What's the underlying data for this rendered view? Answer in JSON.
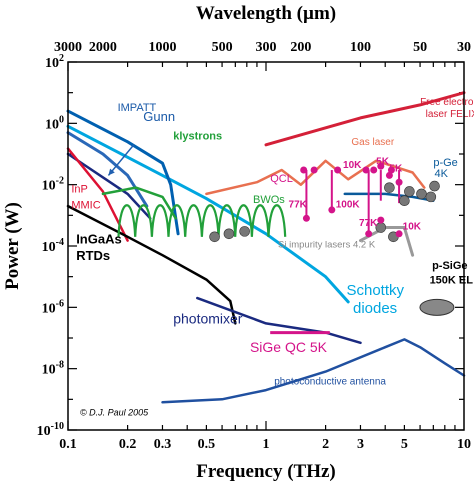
{
  "chart_data": {
    "type": "line",
    "title": "",
    "top_axis_title": "Wavelength (µm)",
    "xlabel": "Frequency (THz)",
    "ylabel": "Power (W)",
    "x_scale": "log",
    "y_scale": "log",
    "xlim": [
      0.1,
      10
    ],
    "ylim": [
      1e-10,
      100
    ],
    "grid": false,
    "x_ticks": [
      {
        "value": 0.1,
        "label": "0.1"
      },
      {
        "value": 0.2,
        "label": "0.2"
      },
      {
        "value": 0.3,
        "label": "0.3"
      },
      {
        "value": 0.5,
        "label": "0.5"
      },
      {
        "value": 1,
        "label": "1"
      },
      {
        "value": 2,
        "label": "2"
      },
      {
        "value": 3,
        "label": "3"
      },
      {
        "value": 5,
        "label": "5"
      },
      {
        "value": 10,
        "label": "10"
      }
    ],
    "top_ticks": [
      {
        "value": 3000,
        "label": "3000"
      },
      {
        "value": 2000,
        "label": "2000"
      },
      {
        "value": 1000,
        "label": "1000"
      },
      {
        "value": 500,
        "label": "500"
      },
      {
        "value": 300,
        "label": "300"
      },
      {
        "value": 200,
        "label": "200"
      },
      {
        "value": 100,
        "label": "100"
      },
      {
        "value": 50,
        "label": "50"
      },
      {
        "value": 30,
        "label": "30"
      }
    ],
    "y_ticks": [
      {
        "exp": 2,
        "base": "10",
        "sup": "2"
      },
      {
        "exp": 0,
        "base": "10",
        "sup": "0"
      },
      {
        "exp": -2,
        "base": "10",
        "sup": "-2"
      },
      {
        "exp": -4,
        "base": "10",
        "sup": "-4"
      },
      {
        "exp": -6,
        "base": "10",
        "sup": "-6"
      },
      {
        "exp": -8,
        "base": "10",
        "sup": "-8"
      },
      {
        "exp": -10,
        "base": "10",
        "sup": "-10"
      }
    ],
    "series": [
      {
        "color": "#00a6e0",
        "width": 3,
        "points": [
          [
            0.1,
            0.8
          ],
          [
            0.3,
            0.02
          ],
          [
            0.5,
            0.0035
          ],
          [
            1,
            0.00025
          ],
          [
            2,
            1e-05
          ],
          [
            2.6,
            1.5e-06
          ]
        ]
      },
      {
        "color": "#0060b0",
        "width": 3,
        "points": [
          [
            0.1,
            2.5
          ],
          [
            0.2,
            0.25
          ],
          [
            0.3,
            0.05
          ],
          [
            0.33,
            0.01
          ],
          [
            0.36,
            0.00025
          ]
        ]
      },
      {
        "color": "#2a68b8",
        "width": 3,
        "points": [
          [
            0.1,
            0.5
          ],
          [
            0.15,
            0.1
          ],
          [
            0.2,
            0.02
          ],
          [
            0.25,
            0.002
          ]
        ]
      },
      {
        "color": "#1a2a80",
        "width": 2.5,
        "points": [
          [
            0.1,
            0.1
          ],
          [
            0.2,
            0.005
          ],
          [
            0.26,
            0.0008
          ]
        ]
      },
      {
        "color": "#dd1133",
        "width": 2.5,
        "points": [
          [
            0.1,
            0.15
          ],
          [
            0.15,
            0.006
          ],
          [
            0.2,
            0.00015
          ]
        ]
      },
      {
        "color": "#000000",
        "width": 2.5,
        "points": [
          [
            0.1,
            0.002
          ],
          [
            0.2,
            0.0002
          ],
          [
            0.3,
            5e-05
          ],
          [
            0.5,
            8e-06
          ],
          [
            0.66,
            1.6e-06
          ],
          [
            0.7,
            3e-07
          ]
        ]
      },
      {
        "color": "#1a2a80",
        "width": 2.5,
        "points": [
          [
            0.45,
            2e-06
          ],
          [
            0.7,
            7e-07
          ],
          [
            1.0,
            3e-07
          ],
          [
            2.0,
            1.5e-07
          ],
          [
            3.0,
            7e-08
          ]
        ]
      },
      {
        "color": "#2050a0",
        "width": 2.5,
        "points": [
          [
            0.3,
            8e-10
          ],
          [
            0.6,
            1e-09
          ],
          [
            1,
            2e-09
          ],
          [
            2,
            8e-09
          ],
          [
            4,
            5e-08
          ],
          [
            5,
            9e-08
          ],
          [
            6,
            5e-08
          ],
          [
            8,
            1.5e-08
          ],
          [
            10,
            6e-09
          ]
        ]
      },
      {
        "color": "#d42038",
        "width": 3,
        "points": [
          [
            1,
            0.2
          ],
          [
            3,
            1.5
          ],
          [
            6,
            4
          ],
          [
            10,
            10
          ]
        ]
      },
      {
        "color": "#e87050",
        "width": 2.5,
        "points": [
          [
            0.5,
            0.005
          ],
          [
            0.9,
            0.012
          ],
          [
            1.2,
            0.03
          ],
          [
            1.5,
            0.01
          ],
          [
            2,
            0.06
          ],
          [
            2.6,
            0.015
          ],
          [
            3.6,
            0.06
          ],
          [
            5.5,
            0.025
          ],
          [
            6.3,
            0.008
          ]
        ]
      },
      {
        "color": "#22a03a",
        "width": 2.5,
        "points": [
          [
            0.15,
            0.005
          ],
          [
            0.22,
            0.008
          ],
          [
            0.3,
            0.004
          ],
          [
            0.35,
            0.0008
          ]
        ]
      },
      {
        "color": "#0a5a9a",
        "width": 2.5,
        "points": [
          [
            2.5,
            0.005
          ],
          [
            4,
            0.005
          ],
          [
            5.5,
            0.004
          ],
          [
            7,
            0.003
          ]
        ]
      },
      {
        "color": "#999999",
        "width": 3,
        "points": [
          [
            3,
            0.00015
          ],
          [
            4,
            0.0004
          ],
          [
            5,
            0.0004
          ],
          [
            5.5,
            5e-05
          ]
        ]
      }
    ],
    "bwo_curve": {
      "color": "#22a03a",
      "xmin": 0.18,
      "xmax": 1.25,
      "bumps": 10,
      "low": 0.0002,
      "high": 0.003
    },
    "gunn_arrow": {
      "color": "#2060b0",
      "from": [
        0.215,
        0.2
      ],
      "to": [
        0.16,
        0.02
      ]
    },
    "qcl_stems": {
      "color": "#d4148a",
      "width": 2,
      "bars": [
        {
          "x": 1.6,
          "y1": 0.0008,
          "y2": 0.03
        },
        {
          "x": 2.15,
          "y1": 0.0015,
          "y2": 0.03
        },
        {
          "x": 3.3,
          "y1": 0.00025,
          "y2": 0.03
        },
        {
          "x": 3.8,
          "y1": 0.003,
          "y2": 0.03
        },
        {
          "x": 4.7,
          "y1": 0.0025,
          "y2": 0.03
        }
      ]
    },
    "qcl_points": {
      "color": "#d4148a",
      "points": [
        [
          1.55,
          0.03
        ],
        [
          1.75,
          0.03
        ],
        [
          2.3,
          0.03
        ],
        [
          3.2,
          0.03
        ],
        [
          3.5,
          0.03
        ],
        [
          3.8,
          0.04
        ],
        [
          4.3,
          0.03
        ],
        [
          4.2,
          0.02
        ],
        [
          4.7,
          0.012
        ],
        [
          1.6,
          0.0008
        ],
        [
          2.15,
          0.0015
        ],
        [
          3.3,
          0.00025
        ],
        [
          3.8,
          0.0007
        ],
        [
          4.7,
          0.00025
        ]
      ]
    },
    "si_impurity_points": {
      "color": "#777777",
      "points": [
        [
          0.55,
          0.0002
        ],
        [
          0.65,
          0.00025
        ],
        [
          0.78,
          0.0003
        ],
        [
          3.8,
          0.0004
        ],
        [
          4.4,
          0.0002
        ],
        [
          4.2,
          0.008
        ],
        [
          5.3,
          0.006
        ],
        [
          6.1,
          0.005
        ],
        [
          6.8,
          0.004
        ],
        [
          5.0,
          0.003
        ],
        [
          7.1,
          0.009
        ]
      ]
    },
    "psige_ellipse": {
      "x": 7.3,
      "y": 1e-06,
      "color": "#888888"
    },
    "sige_qc_segment": {
      "color": "#d4148a",
      "x1": 1.05,
      "x2": 2.1,
      "y": 1.5e-07
    },
    "annotations": [
      {
        "text": "IMPATT",
        "x": 0.178,
        "y": 2.5,
        "color": "#1a5aa8",
        "size": 11
      },
      {
        "text": "Gunn",
        "x": 0.24,
        "y": 1.2,
        "color": "#1a5aa8",
        "size": 13
      },
      {
        "text": "klystrons",
        "x": 0.34,
        "y": 0.3,
        "color": "#22a03a",
        "size": 11,
        "bold": true
      },
      {
        "text": "BWOs",
        "x": 0.86,
        "y": 0.0025,
        "color": "#22a03a",
        "size": 11
      },
      {
        "text": "InP",
        "x": 0.104,
        "y": 0.0055,
        "color": "#dd1133",
        "size": 11
      },
      {
        "text": "MMIC",
        "x": 0.104,
        "y": 0.0017,
        "color": "#dd1133",
        "size": 11
      },
      {
        "text": "InGaAs",
        "x": 0.11,
        "y": 0.00012,
        "color": "#000000",
        "size": 13,
        "bold": true
      },
      {
        "text": "RTDs",
        "x": 0.11,
        "y": 3.5e-05,
        "color": "#000000",
        "size": 13,
        "bold": true
      },
      {
        "text": "Free electron",
        "x": 6.0,
        "y": 4,
        "color": "#d42038",
        "size": 10
      },
      {
        "text": "laser FELIX",
        "x": 6.4,
        "y": 1.6,
        "color": "#d42038",
        "size": 10
      },
      {
        "text": "Gas laser",
        "x": 2.7,
        "y": 0.2,
        "color": "#e87050",
        "size": 10
      },
      {
        "text": "QCL",
        "x": 1.05,
        "y": 0.012,
        "color": "#d4148a",
        "size": 11
      },
      {
        "text": "10K",
        "x": 2.45,
        "y": 0.035,
        "color": "#d4148a",
        "size": 10,
        "bold": true
      },
      {
        "text": "5K",
        "x": 3.6,
        "y": 0.045,
        "color": "#d4148a",
        "size": 10,
        "bold": true
      },
      {
        "text": "5K",
        "x": 4.2,
        "y": 0.027,
        "color": "#d4148a",
        "size": 10,
        "bold": true
      },
      {
        "text": "77K",
        "x": 1.3,
        "y": 0.0018,
        "color": "#d4148a",
        "size": 10,
        "bold": true
      },
      {
        "text": "100K",
        "x": 2.25,
        "y": 0.0018,
        "color": "#d4148a",
        "size": 10,
        "bold": true
      },
      {
        "text": "77K",
        "x": 2.95,
        "y": 0.00045,
        "color": "#d4148a",
        "size": 10,
        "bold": true
      },
      {
        "text": "10K",
        "x": 4.9,
        "y": 0.00035,
        "color": "#d4148a",
        "size": 10,
        "bold": true
      },
      {
        "text": "p-Ge",
        "x": 7.0,
        "y": 0.04,
        "color": "#0a5a9a",
        "size": 11
      },
      {
        "text": "4K",
        "x": 7.1,
        "y": 0.018,
        "color": "#0a5a9a",
        "size": 11
      },
      {
        "text": "Si impurity lasers 4.2 K",
        "x": 1.15,
        "y": 9e-05,
        "color": "#888888",
        "size": 9.5
      },
      {
        "text": "p-SiGe",
        "x": 6.9,
        "y": 1.8e-05,
        "color": "#000000",
        "size": 11,
        "bold": true
      },
      {
        "text": "150K EL",
        "x": 6.7,
        "y": 6e-06,
        "color": "#000000",
        "size": 11,
        "bold": true
      },
      {
        "text": "photomixer",
        "x": 0.34,
        "y": 3e-07,
        "color": "#1a2a80",
        "size": 14
      },
      {
        "text": "Schottky",
        "x": 2.55,
        "y": 2.5e-06,
        "color": "#00a6e0",
        "size": 15
      },
      {
        "text": "diodes",
        "x": 2.75,
        "y": 6.5e-07,
        "color": "#00a6e0",
        "size": 15
      },
      {
        "text": "SiGe QC 5K",
        "x": 0.83,
        "y": 3.5e-08,
        "color": "#d4148a",
        "size": 14
      },
      {
        "text": "photoconductive antenna",
        "x": 1.1,
        "y": 3e-09,
        "color": "#2050a0",
        "size": 10
      },
      {
        "text": "© D.J. Paul 2005",
        "x": 0.115,
        "y": 3e-10,
        "color": "#000000",
        "size": 9,
        "italic": true
      }
    ]
  }
}
